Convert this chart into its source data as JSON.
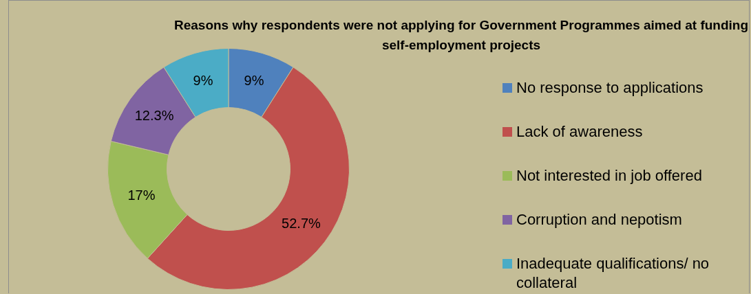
{
  "chart_data": {
    "type": "donut",
    "title": "Reasons why respondents were not applying for Government Programmes aimed at funding self-employment projects",
    "categories": [
      "No response to applications",
      "Lack of awareness",
      "Not interested in job offered",
      "Corruption and nepotism",
      "Inadequate qualifications/ no collateral"
    ],
    "values": [
      9,
      52.7,
      17,
      12.3,
      9
    ],
    "value_labels": [
      "9%",
      "52.7%",
      "17%",
      "12.3%",
      "9%"
    ],
    "colors": [
      "#4f81bd",
      "#c0504d",
      "#9bbb59",
      "#8064a2",
      "#4bacc6"
    ],
    "legend": "right"
  }
}
